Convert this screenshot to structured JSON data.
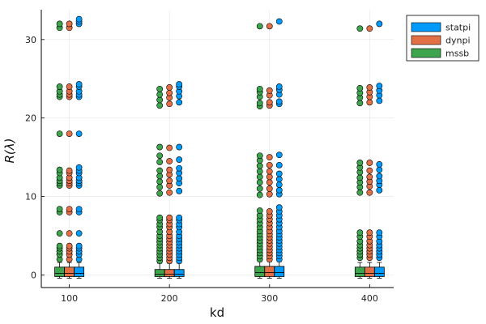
{
  "chart_data": {
    "type": "boxplot",
    "xlabel": "kd",
    "ylabel": "R(λ)",
    "categories": [
      "100",
      "200",
      "300",
      "400"
    ],
    "x_ticks": [
      100,
      200,
      300,
      400
    ],
    "y_ticks": [
      0,
      10,
      20,
      30
    ],
    "ylim": [
      -1.6,
      33.8
    ],
    "grid": true,
    "legend_position": "top-right",
    "series": [
      {
        "name": "statpi",
        "color": "#009AFA",
        "boxes": [
          {
            "x": 100,
            "min": -0.4,
            "q1": -0.2,
            "median": 0.2,
            "q3": 1.0,
            "max": 1.6,
            "outliers": [
              2.0,
              2.6,
              3.0,
              3.4,
              3.7,
              5.3,
              8.0,
              8.4,
              11.4,
              11.7,
              12.0,
              12.4,
              13.0,
              13.3,
              13.7,
              18.0,
              22.7,
              23.0,
              23.4,
              24.0,
              24.3,
              32.0,
              32.3,
              32.6
            ]
          },
          {
            "x": 200,
            "min": -0.4,
            "q1": -0.2,
            "median": 0.1,
            "q3": 0.7,
            "max": 1.5,
            "outliers": [
              1.8,
              2.2,
              2.6,
              3.0,
              3.4,
              3.8,
              4.2,
              4.6,
              5.0,
              5.5,
              6.1,
              6.5,
              7.0,
              7.3,
              10.7,
              11.7,
              12.3,
              13.0,
              13.6,
              14.7,
              16.3,
              22.0,
              22.8,
              23.4,
              24.0,
              24.3
            ]
          },
          {
            "x": 300,
            "min": -0.4,
            "q1": -0.2,
            "median": 0.3,
            "q3": 1.1,
            "max": 1.7,
            "outliers": [
              2.0,
              2.4,
              2.8,
              3.2,
              3.6,
              4.0,
              4.4,
              4.8,
              5.2,
              5.6,
              6.1,
              6.6,
              7.1,
              7.6,
              8.1,
              8.6,
              10.3,
              10.8,
              11.5,
              12.2,
              12.9,
              14.0,
              15.3,
              21.8,
              22.1,
              23.0,
              23.6,
              24.0,
              32.3
            ]
          },
          {
            "x": 400,
            "min": -0.4,
            "q1": -0.2,
            "median": 0.2,
            "q3": 1.0,
            "max": 1.6,
            "outliers": [
              2.2,
              2.6,
              3.0,
              3.4,
              3.8,
              4.3,
              4.9,
              5.4,
              10.8,
              11.5,
              12.0,
              12.6,
              13.4,
              14.1,
              22.2,
              22.9,
              23.5,
              24.1,
              32.0
            ]
          }
        ]
      },
      {
        "name": "dynpi",
        "color": "#E26F46",
        "boxes": [
          {
            "x": 100,
            "min": -0.4,
            "q1": -0.2,
            "median": 0.2,
            "q3": 1.0,
            "max": 1.6,
            "outliers": [
              2.0,
              2.6,
              3.0,
              3.4,
              3.7,
              5.3,
              8.0,
              8.4,
              11.4,
              11.7,
              12.0,
              12.4,
              13.0,
              13.3,
              18.0,
              22.7,
              23.0,
              23.4,
              24.0,
              31.5,
              32.0
            ]
          },
          {
            "x": 200,
            "min": -0.4,
            "q1": -0.2,
            "median": 0.1,
            "q3": 0.7,
            "max": 1.5,
            "outliers": [
              1.8,
              2.2,
              2.6,
              3.0,
              3.4,
              3.8,
              4.2,
              4.6,
              5.0,
              5.5,
              6.1,
              6.5,
              7.0,
              7.3,
              10.5,
              11.4,
              12.0,
              12.8,
              13.4,
              14.5,
              16.2,
              21.8,
              22.6,
              23.2,
              23.9
            ]
          },
          {
            "x": 300,
            "min": -0.4,
            "q1": -0.2,
            "median": 0.3,
            "q3": 1.1,
            "max": 1.7,
            "outliers": [
              2.0,
              2.4,
              2.8,
              3.2,
              3.6,
              4.0,
              4.4,
              4.8,
              5.2,
              5.6,
              6.1,
              6.6,
              7.1,
              7.6,
              8.1,
              10.3,
              11.0,
              11.8,
              12.5,
              13.2,
              14.0,
              15.0,
              21.6,
              22.0,
              22.9,
              23.5,
              31.7
            ]
          },
          {
            "x": 400,
            "min": -0.4,
            "q1": -0.2,
            "median": 0.2,
            "q3": 1.0,
            "max": 1.6,
            "outliers": [
              2.2,
              2.6,
              3.0,
              3.4,
              3.8,
              4.3,
              4.9,
              5.4,
              10.5,
              11.3,
              11.9,
              12.5,
              13.3,
              14.3,
              22.0,
              22.7,
              23.3,
              23.9,
              31.4
            ]
          }
        ]
      },
      {
        "name": "mssb",
        "color": "#3EA44E",
        "boxes": [
          {
            "x": 100,
            "min": -0.4,
            "q1": -0.2,
            "median": 0.2,
            "q3": 1.0,
            "max": 1.6,
            "outliers": [
              2.0,
              2.6,
              3.0,
              3.4,
              3.7,
              5.3,
              8.0,
              8.4,
              11.4,
              11.7,
              12.0,
              12.4,
              13.0,
              13.4,
              18.0,
              22.7,
              23.0,
              23.4,
              24.0,
              31.5,
              32.0
            ]
          },
          {
            "x": 200,
            "min": -0.4,
            "q1": -0.2,
            "median": 0.1,
            "q3": 0.7,
            "max": 1.5,
            "outliers": [
              1.8,
              2.2,
              2.6,
              3.0,
              3.4,
              3.8,
              4.2,
              4.6,
              5.0,
              5.5,
              6.1,
              6.5,
              7.0,
              7.3,
              10.4,
              11.2,
              11.9,
              12.6,
              13.3,
              14.4,
              15.2,
              16.3,
              21.6,
              22.3,
              23.0,
              23.7
            ]
          },
          {
            "x": 300,
            "min": -0.4,
            "q1": -0.2,
            "median": 0.3,
            "q3": 1.1,
            "max": 1.7,
            "outliers": [
              2.0,
              2.4,
              2.8,
              3.2,
              3.6,
              4.0,
              4.4,
              4.8,
              5.2,
              5.6,
              6.1,
              6.6,
              7.1,
              7.6,
              8.2,
              10.2,
              11.0,
              11.8,
              12.5,
              13.2,
              13.9,
              14.6,
              15.2,
              21.5,
              21.9,
              22.7,
              23.3,
              23.7,
              31.7
            ]
          },
          {
            "x": 400,
            "min": -0.4,
            "q1": -0.2,
            "median": 0.2,
            "q3": 1.0,
            "max": 1.6,
            "outliers": [
              2.2,
              2.6,
              3.0,
              3.4,
              3.8,
              4.3,
              4.9,
              5.4,
              10.5,
              11.2,
              11.8,
              12.4,
              13.1,
              13.7,
              14.3,
              21.9,
              22.6,
              23.2,
              23.8,
              31.4
            ]
          }
        ]
      }
    ]
  }
}
